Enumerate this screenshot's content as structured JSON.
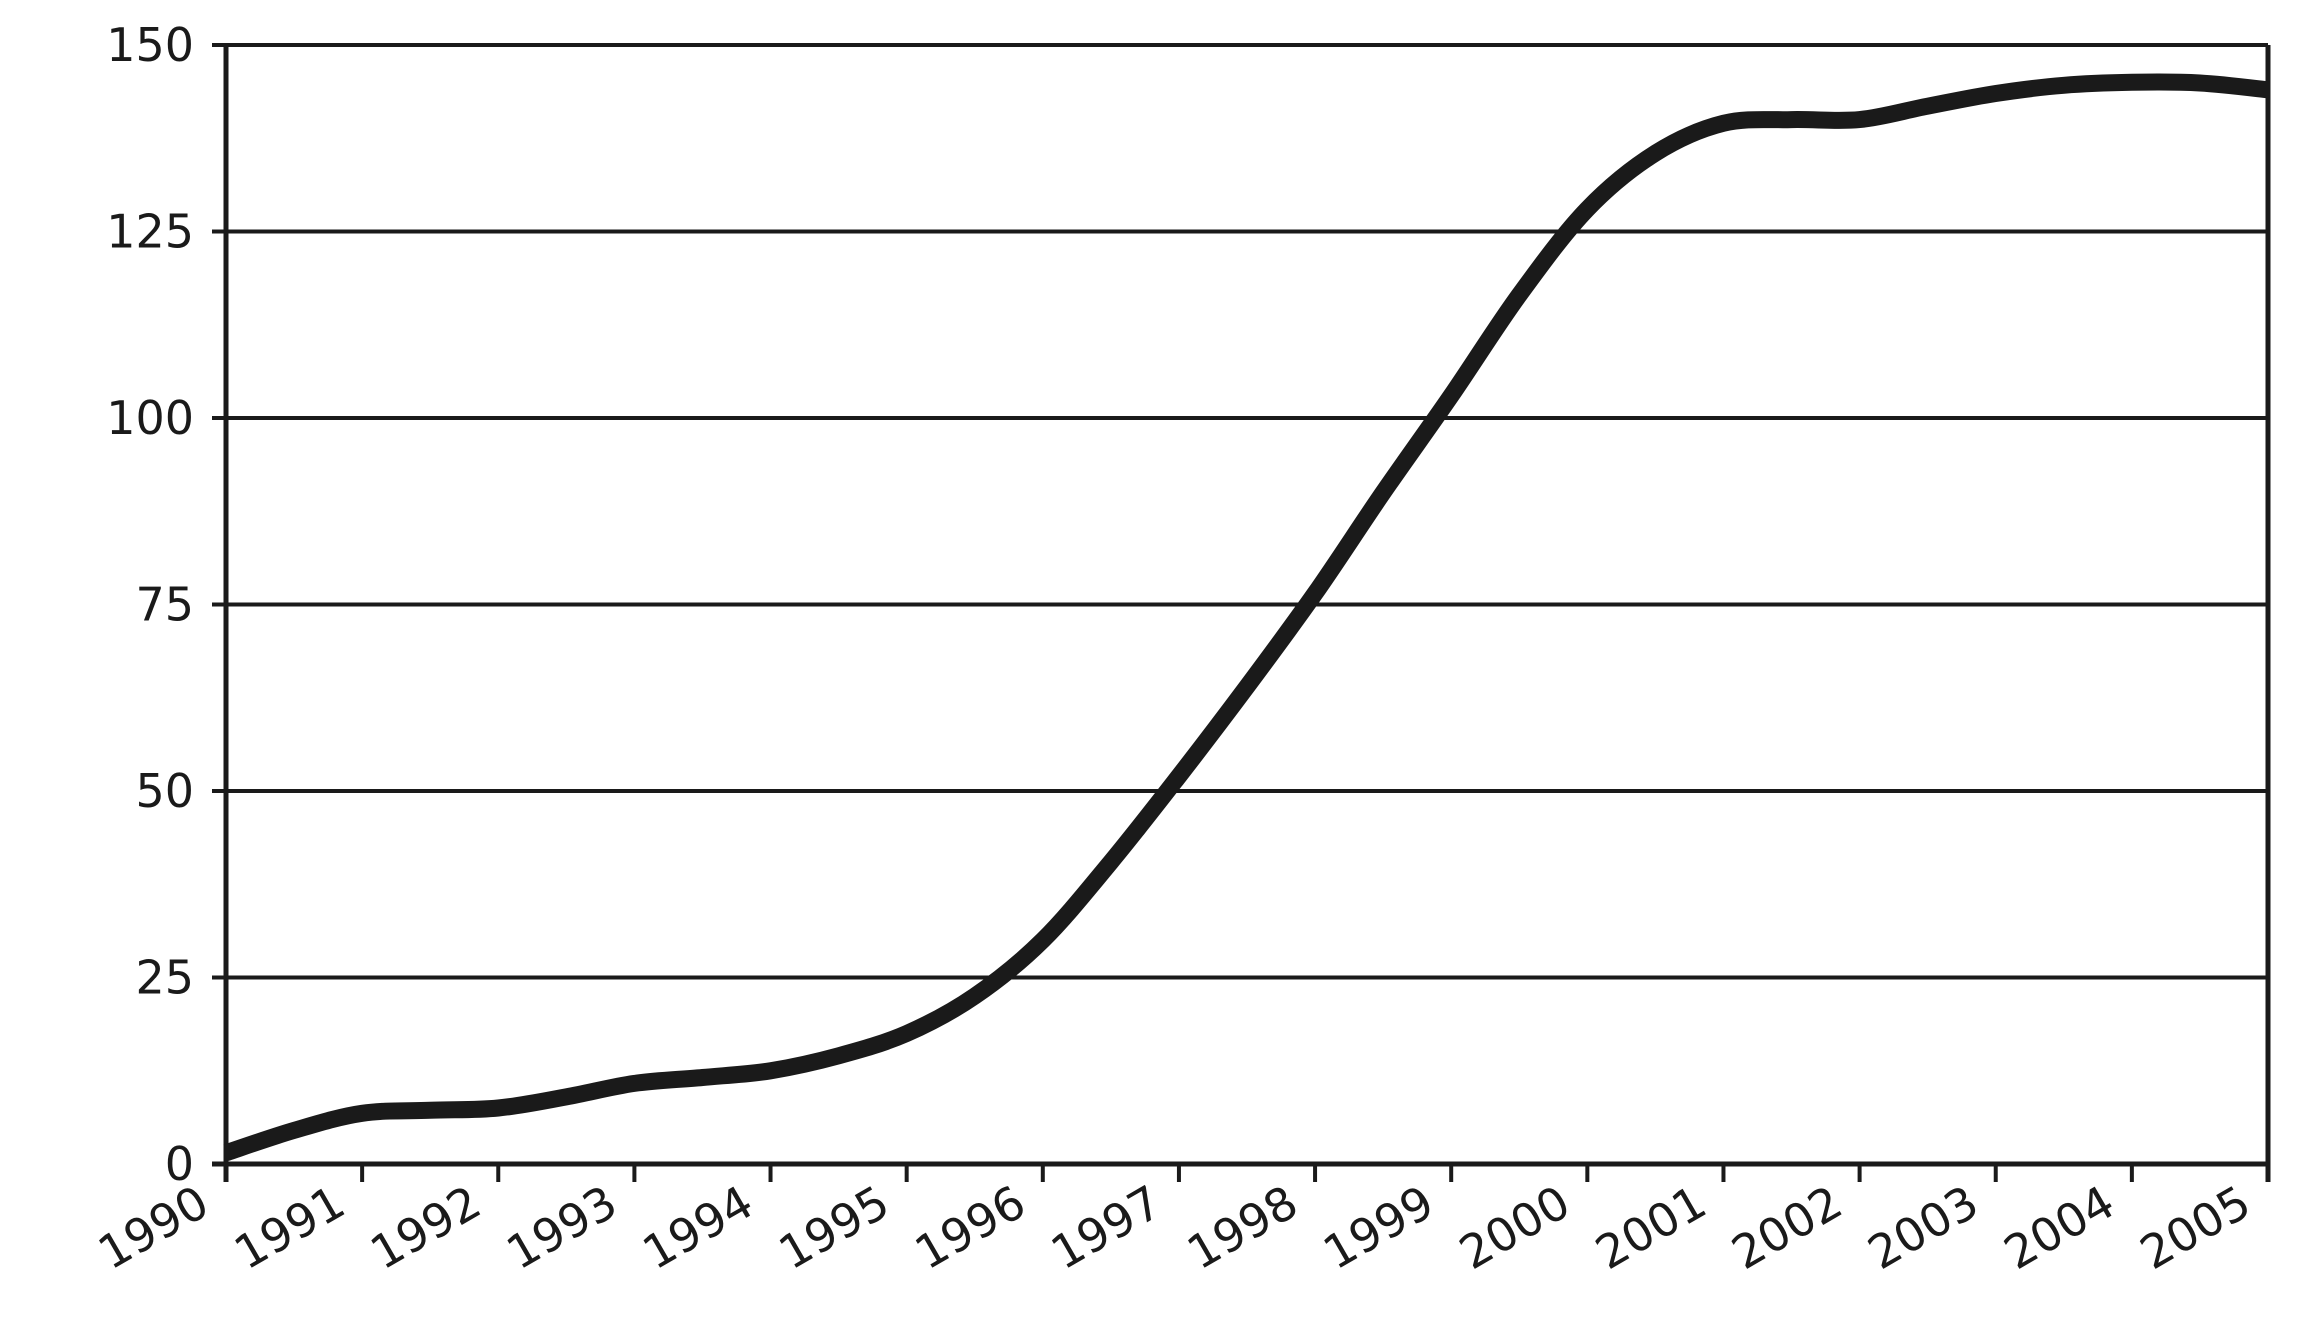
{
  "chart_data": {
    "type": "line",
    "title": "",
    "xlabel": "",
    "ylabel": "",
    "x_ticks": [
      "1990",
      "1991",
      "1992",
      "1993",
      "1994",
      "1995",
      "1996",
      "1997",
      "1998",
      "1999",
      "2000",
      "2001",
      "2002",
      "2003",
      "2004",
      "2005"
    ],
    "y_ticks": [
      "0",
      "25",
      "50",
      "75",
      "100",
      "125",
      "150"
    ],
    "xlim": [
      1990,
      2005
    ],
    "ylim": [
      0,
      150
    ],
    "grid": {
      "horizontal": true,
      "vertical": false
    },
    "line_color": "#1a1a1a",
    "series": [
      {
        "x": [
          1990.0,
          1990.5,
          1991.0,
          1991.5,
          1992.0,
          1992.5,
          1993.0,
          1993.5,
          1994.0,
          1994.5,
          1995.0,
          1995.5,
          1996.0,
          1996.5,
          1997.0,
          1997.5,
          1998.0,
          1998.5,
          1999.0,
          1999.5,
          2000.0,
          2000.5,
          2001.0,
          2001.5,
          2002.0,
          2002.5,
          2003.0,
          2003.5,
          2004.0,
          2004.5,
          2005.0
        ],
        "values": [
          1.5,
          4.5,
          6.8,
          7.2,
          7.5,
          9.0,
          10.8,
          11.6,
          12.5,
          14.5,
          17.5,
          22.5,
          30.0,
          40.5,
          52.0,
          64.0,
          76.5,
          90.0,
          103.0,
          116.5,
          128.0,
          135.5,
          139.5,
          140.0,
          140.0,
          141.8,
          143.5,
          144.6,
          145.0,
          144.9,
          144.0
        ]
      }
    ]
  }
}
